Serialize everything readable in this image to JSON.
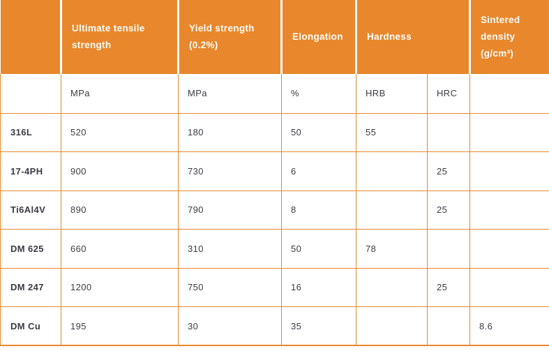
{
  "colors": {
    "accent": "#E8872B",
    "header_background": "#E8872B",
    "header_text": "#FFFFFF",
    "body_text": "#3B3A44",
    "grid_line": "#E8872B"
  },
  "chart_data": {
    "type": "table",
    "title": "",
    "header_groups": [
      {
        "label": "",
        "colspan": 1
      },
      {
        "label": "Ultimate tensile strength",
        "colspan": 1
      },
      {
        "label": "Yield strength (0.2%)",
        "colspan": 1
      },
      {
        "label": "Elongation",
        "colspan": 1
      },
      {
        "label": "Hardness",
        "colspan": 2
      },
      {
        "label": "Sintered density (g/cm³)",
        "colspan": 1
      }
    ],
    "units_row": [
      "",
      "MPa",
      "MPa",
      "%",
      "HRB",
      "HRC",
      ""
    ],
    "rows": [
      {
        "material": "316L",
        "values": [
          "520",
          "180",
          "50",
          "55",
          "",
          ""
        ]
      },
      {
        "material": "17-4PH",
        "values": [
          "900",
          "730",
          "6",
          "",
          "25",
          ""
        ]
      },
      {
        "material": "Ti6Al4V",
        "values": [
          "890",
          "790",
          "8",
          "",
          "25",
          ""
        ]
      },
      {
        "material": "DM 625",
        "values": [
          "660",
          "310",
          "50",
          "78",
          "",
          ""
        ]
      },
      {
        "material": "DM 247",
        "values": [
          "1200",
          "750",
          "16",
          "",
          "25",
          ""
        ]
      },
      {
        "material": "DM Cu",
        "values": [
          "195",
          "30",
          "35",
          "",
          "",
          "8.6"
        ]
      }
    ]
  }
}
